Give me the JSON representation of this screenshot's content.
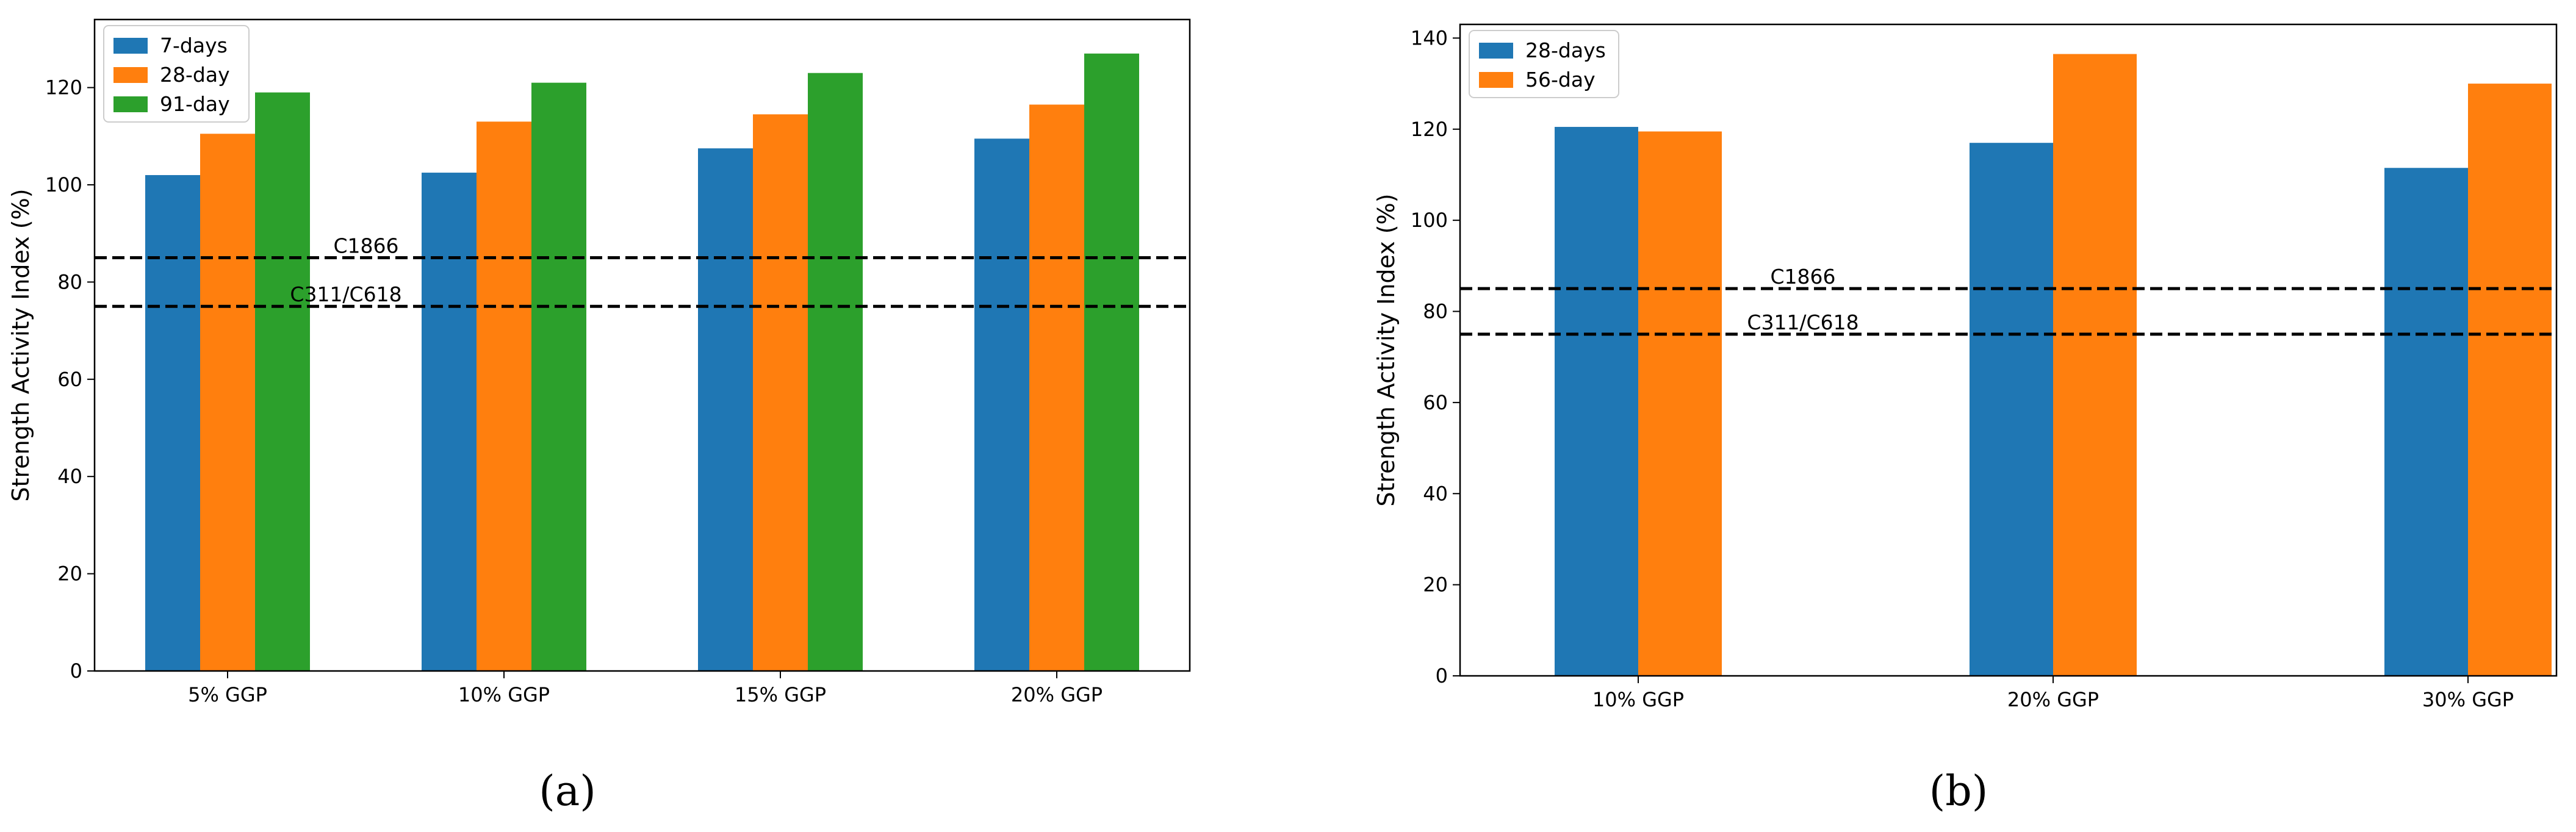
{
  "chart_data": [
    {
      "type": "bar",
      "panel_label": "(a)",
      "title": "",
      "xlabel": "",
      "ylabel": "Strength Activity Index (%)",
      "categories": [
        "5% GGP",
        "10% GGP",
        "15% GGP",
        "20% GGP"
      ],
      "series": [
        {
          "name": "7-days",
          "color": "#1f77b4",
          "values": [
            102,
            102.5,
            107.5,
            109.5
          ]
        },
        {
          "name": "28-day",
          "color": "#ff7f0e",
          "values": [
            110.5,
            113,
            114.5,
            116.5
          ]
        },
        {
          "name": "91-day",
          "color": "#2ca02c",
          "values": [
            119,
            121,
            123,
            127
          ]
        }
      ],
      "ylim": [
        0,
        134
      ],
      "yticks": [
        0,
        20,
        40,
        60,
        80,
        100,
        120
      ],
      "reference_lines": [
        {
          "label": "C1866",
          "value": 85
        },
        {
          "label": "C311/C618",
          "value": 75
        }
      ],
      "legend_position": "top-left",
      "grid": false
    },
    {
      "type": "bar",
      "panel_label": "(b)",
      "title": "",
      "xlabel": "",
      "ylabel": "Strength Activity Index (%)",
      "categories": [
        "10% GGP",
        "20% GGP",
        "30% GGP"
      ],
      "series": [
        {
          "name": "28-days",
          "color": "#1f77b4",
          "values": [
            120.5,
            117,
            111.5
          ]
        },
        {
          "name": "56-day",
          "color": "#ff7f0e",
          "values": [
            119.5,
            136.5,
            130
          ]
        }
      ],
      "ylim": [
        0,
        143
      ],
      "yticks": [
        0,
        20,
        40,
        60,
        80,
        100,
        120,
        140
      ],
      "reference_lines": [
        {
          "label": "C1866",
          "value": 85
        },
        {
          "label": "C311/C618",
          "value": 75
        }
      ],
      "legend_position": "top-left",
      "grid": false
    }
  ]
}
